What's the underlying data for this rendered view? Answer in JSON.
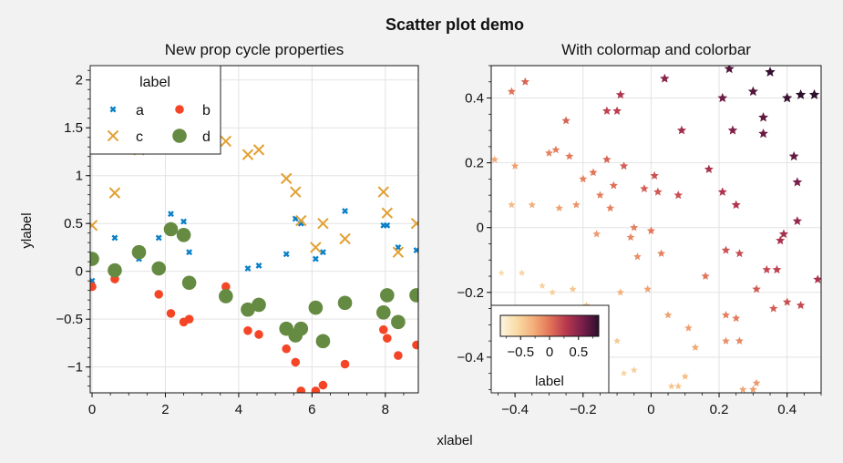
{
  "figure": {
    "suptitle": "Scatter plot demo",
    "xlabel": "xlabel",
    "ylabel": "ylabel"
  },
  "chart_data": [
    {
      "type": "scatter",
      "title": "New prop cycle properties",
      "xlim": [
        -0.05,
        8.9
      ],
      "ylim": [
        -1.27,
        2.15
      ],
      "xticks": [
        0,
        2,
        4,
        6,
        8
      ],
      "xtick_labels": [
        "0",
        "2",
        "4",
        "6",
        "8"
      ],
      "yticks": [
        -1,
        -0.5,
        0,
        0.5,
        1,
        1.5,
        2
      ],
      "ytick_labels": [
        "−1",
        "−0.5",
        "0",
        "0.5",
        "1",
        "1.5",
        "2"
      ],
      "grid": true,
      "legend": {
        "title": "label",
        "placement": "top-left"
      },
      "x": [
        0.0,
        0.62,
        1.28,
        1.82,
        2.15,
        2.5,
        2.65,
        3.65,
        4.25,
        4.55,
        5.3,
        5.55,
        5.7,
        6.1,
        6.3,
        6.9,
        7.95,
        8.05,
        8.35,
        8.85
      ],
      "series": [
        {
          "name": "a",
          "color": "#0a80c8",
          "marker": "x-small",
          "y": [
            -0.1,
            0.35,
            0.13,
            0.35,
            0.6,
            0.52,
            0.2,
            null,
            0.03,
            0.06,
            0.18,
            0.55,
            0.5,
            0.13,
            0.2,
            0.63,
            0.48,
            0.48,
            0.25,
            0.22
          ]
        },
        {
          "name": "b",
          "color": "#f44626",
          "marker": "circle",
          "y": [
            -0.16,
            -0.08,
            0.22,
            -0.24,
            -0.44,
            -0.53,
            -0.5,
            -0.16,
            -0.62,
            -0.66,
            -0.81,
            -0.95,
            -1.25,
            -1.25,
            -1.19,
            -0.97,
            -0.61,
            -0.7,
            -0.88,
            -0.77
          ]
        },
        {
          "name": "c",
          "color": "#e2a032",
          "marker": "x",
          "y": [
            0.48,
            0.82,
            1.27,
            1.44,
            1.62,
            2.12,
            1.78,
            1.36,
            1.22,
            1.27,
            0.97,
            0.83,
            0.53,
            0.25,
            0.5,
            0.34,
            0.83,
            0.61,
            0.2,
            0.5
          ]
        },
        {
          "name": "d",
          "color": "#658a41",
          "marker": "circle-large",
          "y": [
            0.13,
            0.01,
            0.2,
            0.03,
            0.44,
            0.38,
            -0.12,
            -0.26,
            -0.4,
            -0.35,
            -0.6,
            -0.67,
            -0.6,
            -0.38,
            -0.73,
            -0.33,
            -0.43,
            -0.25,
            -0.53,
            -0.25
          ]
        }
      ]
    },
    {
      "type": "scatter",
      "title": "With colormap and colorbar",
      "xlim": [
        -0.47,
        0.5
      ],
      "ylim": [
        -0.51,
        0.5
      ],
      "xticks": [
        -0.4,
        -0.2,
        0,
        0.2,
        0.4
      ],
      "xtick_labels": [
        "−0.4",
        "−0.2",
        "0",
        "0.2",
        "0.4"
      ],
      "yticks": [
        -0.4,
        -0.2,
        0,
        0.2,
        0.4
      ],
      "ytick_labels": [
        "−0.4",
        "−0.2",
        "0",
        "0.2",
        "0.4"
      ],
      "grid": true,
      "marker": "star",
      "colormap": [
        "#fdf6e3",
        "#f9dba6",
        "#f4b07a",
        "#e27558",
        "#b8384e",
        "#7a1f4a",
        "#2e0f2c"
      ],
      "colorbar": {
        "label": "label",
        "placement": "lower-left",
        "ticks": [
          -0.5,
          0,
          0.5
        ],
        "tick_labels": [
          "−0.5",
          "0",
          "0.5"
        ],
        "range": [
          -0.85,
          0.85
        ]
      },
      "points": [
        [
          -0.46,
          0.21
        ],
        [
          -0.44,
          -0.14
        ],
        [
          -0.41,
          0.42
        ],
        [
          -0.4,
          0.19
        ],
        [
          -0.37,
          0.45
        ],
        [
          -0.41,
          0.07
        ],
        [
          -0.38,
          -0.14
        ],
        [
          -0.35,
          0.07
        ],
        [
          -0.32,
          -0.18
        ],
        [
          -0.3,
          0.23
        ],
        [
          -0.28,
          0.24
        ],
        [
          -0.27,
          0.06
        ],
        [
          -0.24,
          0.22
        ],
        [
          -0.25,
          0.33
        ],
        [
          -0.22,
          0.07
        ],
        [
          -0.2,
          0.15
        ],
        [
          -0.17,
          0.17
        ],
        [
          -0.16,
          -0.02
        ],
        [
          -0.15,
          0.1
        ],
        [
          -0.13,
          0.21
        ],
        [
          -0.12,
          0.06
        ],
        [
          -0.11,
          0.13
        ],
        [
          -0.09,
          0.41
        ],
        [
          -0.1,
          0.36
        ],
        [
          -0.08,
          0.19
        ],
        [
          -0.06,
          -0.03
        ],
        [
          -0.04,
          -0.09
        ],
        [
          -0.02,
          0.12
        ],
        [
          0.0,
          -0.01
        ],
        [
          0.01,
          0.16
        ],
        [
          0.02,
          0.11
        ],
        [
          -0.01,
          -0.19
        ],
        [
          -0.05,
          0.0
        ],
        [
          0.04,
          0.46
        ],
        [
          0.08,
          0.1
        ],
        [
          0.09,
          0.3
        ],
        [
          0.11,
          -0.31
        ],
        [
          0.16,
          -0.15
        ],
        [
          0.17,
          0.18
        ],
        [
          0.21,
          0.4
        ],
        [
          0.21,
          0.11
        ],
        [
          0.23,
          0.49
        ],
        [
          0.24,
          0.3
        ],
        [
          0.25,
          0.07
        ],
        [
          0.3,
          0.42
        ],
        [
          0.33,
          0.34
        ],
        [
          0.33,
          0.29
        ],
        [
          0.35,
          0.48
        ],
        [
          0.34,
          -0.13
        ],
        [
          0.37,
          -0.13
        ],
        [
          0.4,
          0.4
        ],
        [
          0.42,
          0.22
        ],
        [
          0.44,
          0.41
        ],
        [
          0.43,
          0.14
        ],
        [
          0.48,
          0.41
        ],
        [
          0.39,
          -0.02
        ],
        [
          0.43,
          0.02
        ],
        [
          0.38,
          -0.04
        ],
        [
          0.49,
          -0.16
        ],
        [
          0.44,
          -0.24
        ],
        [
          0.4,
          -0.23
        ],
        [
          0.36,
          -0.25
        ],
        [
          0.31,
          -0.19
        ],
        [
          0.26,
          -0.08
        ],
        [
          0.22,
          -0.07
        ],
        [
          0.22,
          -0.27
        ],
        [
          0.25,
          -0.28
        ],
        [
          0.26,
          -0.35
        ],
        [
          0.22,
          -0.35
        ],
        [
          0.13,
          -0.37
        ],
        [
          0.27,
          -0.5
        ],
        [
          0.31,
          -0.48
        ],
        [
          0.3,
          -0.5
        ],
        [
          0.06,
          -0.49
        ],
        [
          0.1,
          -0.46
        ],
        [
          0.08,
          -0.49
        ],
        [
          0.05,
          -0.27
        ],
        [
          -0.09,
          -0.2
        ],
        [
          -0.05,
          -0.44
        ],
        [
          -0.1,
          -0.35
        ],
        [
          -0.15,
          -0.43
        ],
        [
          -0.08,
          -0.45
        ],
        [
          -0.13,
          -0.46
        ],
        [
          -0.17,
          -0.38
        ],
        [
          -0.22,
          -0.32
        ],
        [
          -0.19,
          -0.24
        ],
        [
          -0.25,
          -0.29
        ],
        [
          -0.27,
          -0.36
        ],
        [
          -0.35,
          -0.37
        ],
        [
          -0.31,
          -0.25
        ],
        [
          -0.23,
          -0.19
        ],
        [
          -0.29,
          -0.2
        ],
        [
          -0.4,
          -0.27
        ],
        [
          -0.13,
          0.36
        ],
        [
          0.03,
          -0.08
        ]
      ]
    }
  ]
}
